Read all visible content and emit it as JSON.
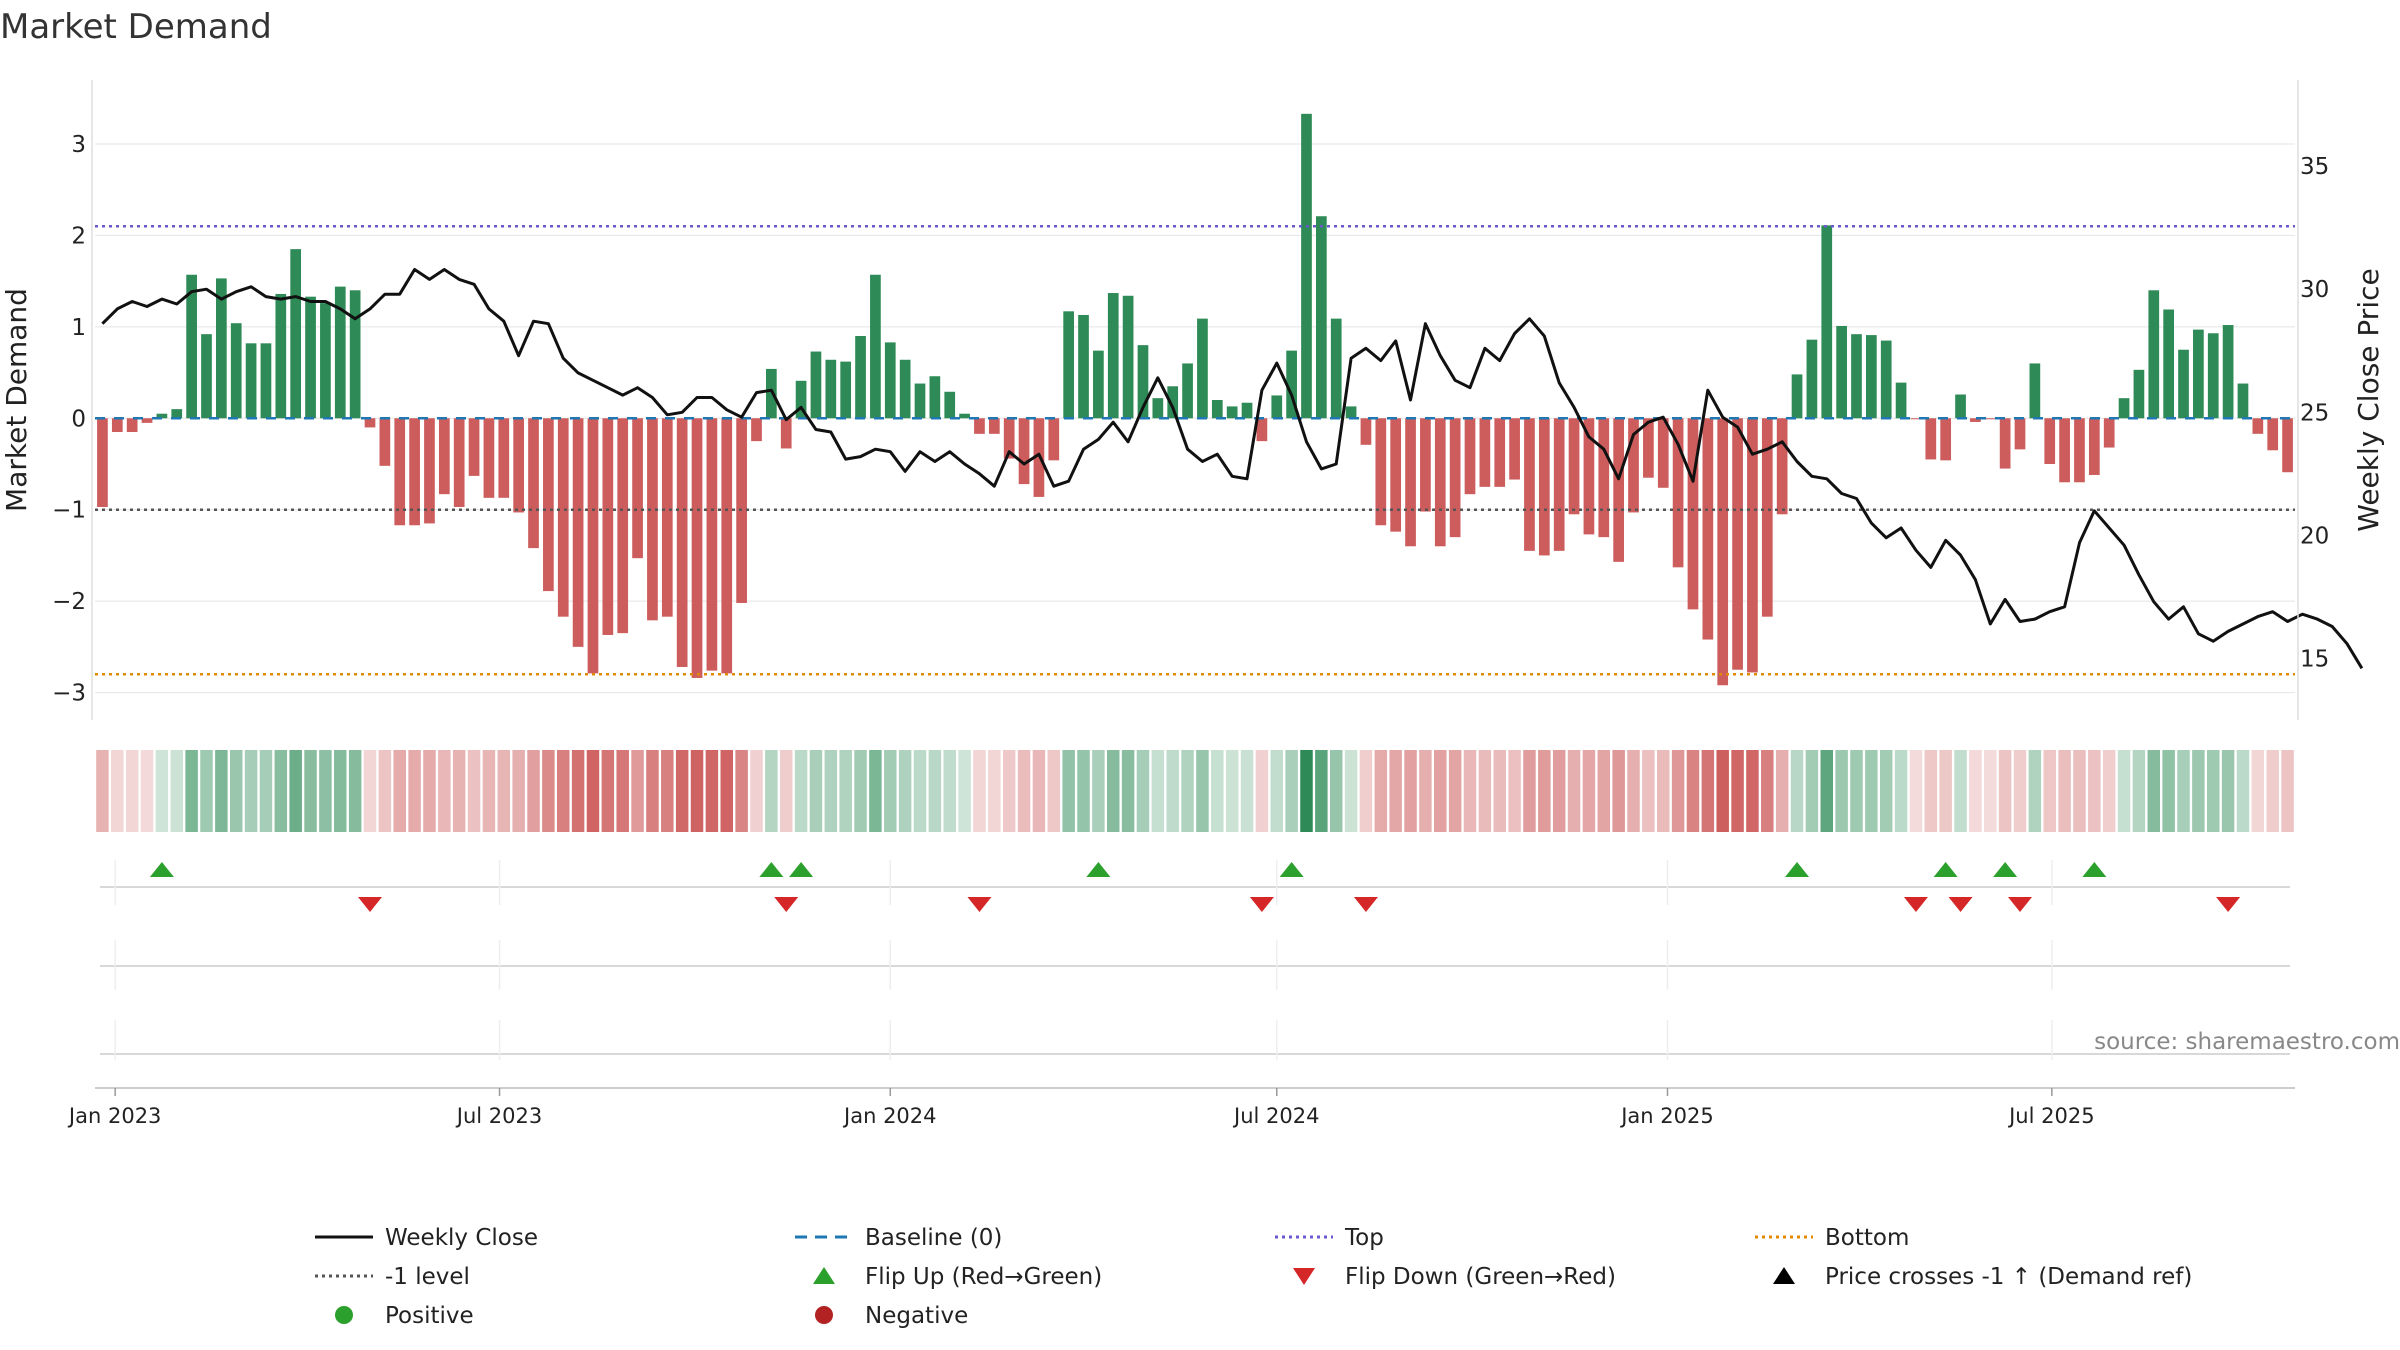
{
  "chart_data": {
    "type": "bar",
    "title": "Market Demand",
    "ylabel": "Market Demand",
    "y2label": "Weekly Close Price",
    "ylim": [
      -3.3,
      3.7
    ],
    "y2lim": [
      12.5,
      38.5
    ],
    "yticks": [
      -3,
      -2,
      -1,
      0,
      1,
      2,
      3
    ],
    "yticklabels": [
      "−3",
      "−2",
      "−1",
      "0",
      "1",
      "2",
      "3"
    ],
    "y2ticks": [
      15,
      20,
      25,
      30,
      35
    ],
    "y2ticklabels": [
      "15",
      "20",
      "25",
      "30",
      "35"
    ],
    "x_start": "2022-12-26",
    "week_days": 7,
    "date_ticks": [
      {
        "label": "Jan 2023",
        "day": 6
      },
      {
        "label": "Jul 2023",
        "day": 187
      },
      {
        "label": "Jan 2024",
        "day": 371
      },
      {
        "label": "Jul 2024",
        "day": 553
      },
      {
        "label": "Jan 2025",
        "day": 737
      },
      {
        "label": "Jul 2025",
        "day": 918
      }
    ],
    "demand": [
      -0.97,
      -0.15,
      -0.15,
      -0.05,
      0.05,
      0.1,
      1.57,
      0.92,
      1.53,
      1.04,
      0.82,
      0.82,
      1.36,
      1.85,
      1.33,
      1.26,
      1.44,
      1.4,
      -0.1,
      -0.52,
      -1.17,
      -1.17,
      -1.15,
      -0.83,
      -0.97,
      -0.63,
      -0.87,
      -0.87,
      -1.03,
      -1.42,
      -1.89,
      -2.17,
      -2.5,
      -2.79,
      -2.37,
      -2.35,
      -1.53,
      -2.21,
      -2.17,
      -2.72,
      -2.84,
      -2.76,
      -2.79,
      -2.02,
      -0.25,
      0.54,
      -0.33,
      0.41,
      0.73,
      0.64,
      0.62,
      0.9,
      1.57,
      0.83,
      0.64,
      0.38,
      0.46,
      0.29,
      0.05,
      -0.17,
      -0.17,
      -0.44,
      -0.72,
      -0.86,
      -0.46,
      1.17,
      1.13,
      0.74,
      1.37,
      1.34,
      0.8,
      0.22,
      0.35,
      0.6,
      1.09,
      0.2,
      0.13,
      0.17,
      -0.25,
      0.25,
      0.74,
      3.33,
      2.21,
      1.09,
      0.13,
      -0.29,
      -1.17,
      -1.24,
      -1.4,
      -1.02,
      -1.4,
      -1.3,
      -0.83,
      -0.75,
      -0.75,
      -0.67,
      -1.45,
      -1.5,
      -1.45,
      -1.05,
      -1.27,
      -1.3,
      -1.57,
      -1.03,
      -0.65,
      -0.76,
      -1.63,
      -2.09,
      -2.42,
      -2.92,
      -2.75,
      -2.78,
      -2.17,
      -1.05,
      0.48,
      0.86,
      2.11,
      1.01,
      0.92,
      0.91,
      0.85,
      0.39,
      -0.01,
      -0.45,
      -0.46,
      0.26,
      -0.04,
      -0.01,
      -0.55,
      -0.34,
      0.6,
      -0.5,
      -0.7,
      -0.7,
      -0.62,
      -0.32,
      0.22,
      0.53,
      1.4,
      1.19,
      0.75,
      0.97,
      0.93,
      1.02,
      0.38,
      -0.17,
      -0.35,
      -0.59
    ],
    "close": [
      28.6,
      29.2,
      29.5,
      29.3,
      29.6,
      29.4,
      29.9,
      30.0,
      29.6,
      29.9,
      30.1,
      29.7,
      29.6,
      29.7,
      29.5,
      29.5,
      29.2,
      28.8,
      29.2,
      29.8,
      29.8,
      30.8,
      30.4,
      30.8,
      30.4,
      30.2,
      29.2,
      28.7,
      27.3,
      28.7,
      28.6,
      27.2,
      26.6,
      26.3,
      26.0,
      25.7,
      26.0,
      25.6,
      24.9,
      25.0,
      25.6,
      25.6,
      25.1,
      24.8,
      25.8,
      25.9,
      24.7,
      25.2,
      24.3,
      24.2,
      23.1,
      23.2,
      23.5,
      23.4,
      22.6,
      23.4,
      23.0,
      23.4,
      22.9,
      22.5,
      22.0,
      23.4,
      22.9,
      23.3,
      22.0,
      22.2,
      23.5,
      23.9,
      24.6,
      23.8,
      25.2,
      26.4,
      25.2,
      23.5,
      23.0,
      23.3,
      22.4,
      22.3,
      25.9,
      27.0,
      25.7,
      23.8,
      22.7,
      22.9,
      27.2,
      27.6,
      27.1,
      27.9,
      25.5,
      28.6,
      27.3,
      26.3,
      26.0,
      27.6,
      27.1,
      28.2,
      28.8,
      28.1,
      26.2,
      25.2,
      24.0,
      23.5,
      22.3,
      24.1,
      24.6,
      24.8,
      23.7,
      22.2,
      25.9,
      24.8,
      24.4,
      23.3,
      23.5,
      23.8,
      23.0,
      22.4,
      22.3,
      21.7,
      21.5,
      20.5,
      19.9,
      20.3,
      19.4,
      18.7,
      19.8,
      19.2,
      18.2,
      16.4,
      17.4,
      16.5,
      16.6,
      16.9,
      17.1,
      19.7,
      21.0,
      20.3,
      19.6,
      18.4,
      17.3,
      16.6,
      17.1,
      16.0,
      15.7,
      16.1,
      16.4,
      16.7,
      16.9,
      16.5,
      16.8,
      16.6,
      16.3,
      15.6,
      14.6
    ],
    "series": [
      {
        "name": "Weekly Close",
        "color": "#111111"
      },
      {
        "name": "Baseline (0)",
        "color": "#1f77b4"
      },
      {
        "name": "Top",
        "color": "#6a5acd",
        "value": 2.1
      },
      {
        "name": "Bottom",
        "color": "#e08a00",
        "value": -2.8
      },
      {
        "name": "-1 level",
        "color": "#555555",
        "value": -1.0
      }
    ],
    "flip_up_weeks": [
      4,
      45,
      47,
      67,
      80,
      114,
      124,
      128,
      134
    ],
    "flip_down_weeks": [
      18,
      46,
      59,
      78,
      85,
      122,
      125,
      129,
      143
    ]
  },
  "legend": {
    "items": [
      {
        "label": "Weekly Close",
        "kind": "line-solid",
        "color": "#111111"
      },
      {
        "label": "Baseline (0)",
        "kind": "line-dash",
        "color": "#1f77b4"
      },
      {
        "label": "Top",
        "kind": "line-dot",
        "color": "#6a5acd"
      },
      {
        "label": "Bottom",
        "kind": "line-dot",
        "color": "#e08a00"
      },
      {
        "label": "-1 level",
        "kind": "line-dot",
        "color": "#555555"
      },
      {
        "label": "Flip Up (Red→Green)",
        "kind": "tri-up",
        "color": "#2ca02c"
      },
      {
        "label": "Flip Down (Green→Red)",
        "kind": "tri-down",
        "color": "#d62728"
      },
      {
        "label": "Price crosses -1 ↑ (Demand ref)",
        "kind": "tri-up",
        "color": "#000000"
      },
      {
        "label": "Positive",
        "kind": "dot",
        "color": "#2ca02c"
      },
      {
        "label": "Negative",
        "kind": "dot",
        "color": "#b22222"
      }
    ]
  },
  "colors": {
    "positive_bar": "#2e8b57",
    "negative_bar": "#cd5c5c",
    "flip_up": "#2ca02c",
    "flip_down": "#d62728"
  },
  "source": "source: sharemaestro.com"
}
